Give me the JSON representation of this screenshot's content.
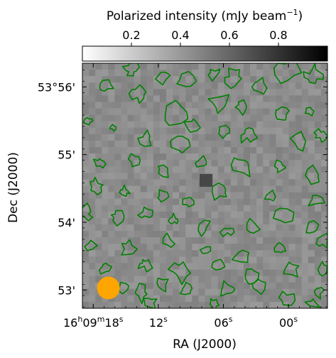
{
  "chart_data": {
    "type": "heatmap",
    "colorbar": {
      "label": "Polarized intensity (mJy beam",
      "label_exponent": "−1",
      "label_close": ")",
      "range": [
        0.0,
        1.0
      ],
      "ticks": [
        0.2,
        0.4,
        0.6,
        0.8
      ],
      "tick_labels": [
        "0.2",
        "0.4",
        "0.6",
        "0.8"
      ],
      "colormap": "gray_r",
      "placement": "top"
    },
    "xlabel": "RA (J2000)",
    "ylabel": "Dec (J2000)",
    "x_ticks": [
      {
        "ra_sec": 18,
        "parts": [
          [
            "16",
            ""
          ],
          [
            "h",
            "sup"
          ],
          [
            "09",
            ""
          ],
          [
            "m",
            "sup"
          ],
          [
            "18",
            ""
          ],
          [
            "s",
            "sup"
          ]
        ]
      },
      {
        "ra_sec": 12,
        "parts": [
          [
            "12",
            ""
          ],
          [
            "s",
            "sup"
          ]
        ]
      },
      {
        "ra_sec": 6,
        "parts": [
          [
            "06",
            ""
          ],
          [
            "s",
            "sup"
          ]
        ]
      },
      {
        "ra_sec": 0,
        "parts": [
          [
            "00",
            ""
          ],
          [
            "s",
            "sup"
          ]
        ]
      }
    ],
    "y_ticks": [
      {
        "dec_arcmin": 56,
        "label": "53°56'"
      },
      {
        "dec_arcmin": 55,
        "label": "55'"
      },
      {
        "dec_arcmin": 54,
        "label": "54'"
      },
      {
        "dec_arcmin": 53,
        "label": "53'"
      }
    ],
    "x_range_ra_sec": [
      19.0,
      -3.6
    ],
    "y_range_dec_arcmin": [
      52.73,
      56.35
    ],
    "background_level_mJy": 0.45,
    "peak": {
      "ra_sec": 7.6,
      "dec_arcmin": 54.62,
      "value_mJy": 0.72
    },
    "contour_color": "#008000",
    "beam": {
      "ra_sec": 16.6,
      "dec_arcmin": 53.03,
      "color": "#FFA500"
    }
  }
}
